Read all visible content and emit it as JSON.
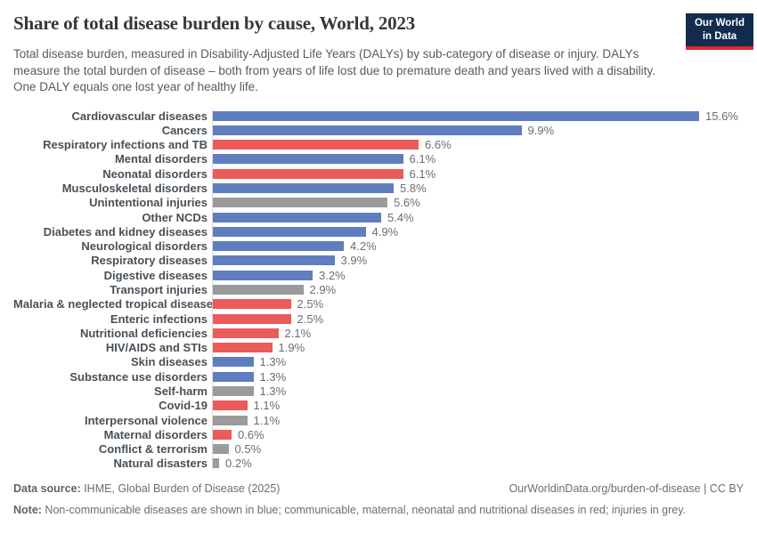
{
  "header": {
    "title": "Share of total disease burden by cause, World, 2023",
    "subtitle": "Total disease burden, measured in Disability-Adjusted Life Years (DALYs) by sub-category of disease or injury. DALYs measure the total burden of disease – both from years of life lost due to premature death and years lived with a disability. One DALY equals one lost year of healthy life.",
    "logo": {
      "line1": "Our World",
      "line2": "in Data",
      "bg_color": "#122b4f",
      "stripe_color": "#d7282f"
    }
  },
  "chart_data": {
    "type": "bar",
    "orientation": "horizontal",
    "title": "Share of total disease burden by cause, World, 2023",
    "unit": "%",
    "xlim": [
      0,
      15.6
    ],
    "grid": false,
    "legend_position": "none",
    "group_colors": {
      "ncd": "#5f7ebf",
      "communicable": "#ea5b5a",
      "injury": "#9a9a9a"
    },
    "series": [
      {
        "category": "Cardiovascular diseases",
        "value": 15.6,
        "label": "15.6%",
        "group": "ncd"
      },
      {
        "category": "Cancers",
        "value": 9.9,
        "label": "9.9%",
        "group": "ncd"
      },
      {
        "category": "Respiratory infections and TB",
        "value": 6.6,
        "label": "6.6%",
        "group": "communicable"
      },
      {
        "category": "Mental disorders",
        "value": 6.1,
        "label": "6.1%",
        "group": "ncd"
      },
      {
        "category": "Neonatal disorders",
        "value": 6.1,
        "label": "6.1%",
        "group": "communicable"
      },
      {
        "category": "Musculoskeletal disorders",
        "value": 5.8,
        "label": "5.8%",
        "group": "ncd"
      },
      {
        "category": "Unintentional injuries",
        "value": 5.6,
        "label": "5.6%",
        "group": "injury"
      },
      {
        "category": "Other NCDs",
        "value": 5.4,
        "label": "5.4%",
        "group": "ncd"
      },
      {
        "category": "Diabetes and kidney diseases",
        "value": 4.9,
        "label": "4.9%",
        "group": "ncd"
      },
      {
        "category": "Neurological disorders",
        "value": 4.2,
        "label": "4.2%",
        "group": "ncd"
      },
      {
        "category": "Respiratory diseases",
        "value": 3.9,
        "label": "3.9%",
        "group": "ncd"
      },
      {
        "category": "Digestive diseases",
        "value": 3.2,
        "label": "3.2%",
        "group": "ncd"
      },
      {
        "category": "Transport injuries",
        "value": 2.9,
        "label": "2.9%",
        "group": "injury"
      },
      {
        "category": "Malaria & neglected tropical diseases",
        "value": 2.5,
        "label": "2.5%",
        "group": "communicable"
      },
      {
        "category": "Enteric infections",
        "value": 2.5,
        "label": "2.5%",
        "group": "communicable"
      },
      {
        "category": "Nutritional deficiencies",
        "value": 2.1,
        "label": "2.1%",
        "group": "communicable"
      },
      {
        "category": "HIV/AIDS and STIs",
        "value": 1.9,
        "label": "1.9%",
        "group": "communicable"
      },
      {
        "category": "Skin diseases",
        "value": 1.3,
        "label": "1.3%",
        "group": "ncd"
      },
      {
        "category": "Substance use disorders",
        "value": 1.3,
        "label": "1.3%",
        "group": "ncd"
      },
      {
        "category": "Self-harm",
        "value": 1.3,
        "label": "1.3%",
        "group": "injury"
      },
      {
        "category": "Covid-19",
        "value": 1.1,
        "label": "1.1%",
        "group": "communicable"
      },
      {
        "category": "Interpersonal violence",
        "value": 1.1,
        "label": "1.1%",
        "group": "injury"
      },
      {
        "category": "Maternal disorders",
        "value": 0.6,
        "label": "0.6%",
        "group": "communicable"
      },
      {
        "category": "Conflict & terrorism",
        "value": 0.5,
        "label": "0.5%",
        "group": "injury"
      },
      {
        "category": "Natural disasters",
        "value": 0.2,
        "label": "0.2%",
        "group": "injury"
      }
    ]
  },
  "footer": {
    "datasource_label": "Data source:",
    "datasource_text": " IHME, Global Burden of Disease (2025)",
    "rights": "OurWorldinData.org/burden-of-disease | CC BY",
    "note_label": "Note:",
    "note_text": " Non-communicable diseases are shown in blue; communicable, maternal, neonatal and nutritional diseases in red; injuries in grey."
  }
}
